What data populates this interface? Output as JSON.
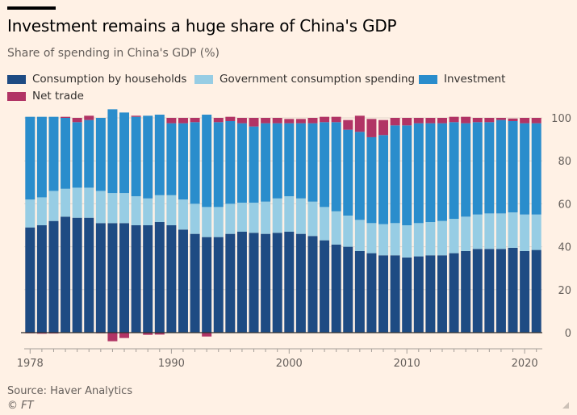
{
  "header": {
    "title": "Investment remains a huge share of China's GDP",
    "subtitle": "Share of spending in China's GDP (%)"
  },
  "footer": {
    "source": "Source: Haver Analytics",
    "copyright": "© FT"
  },
  "colors": {
    "background": "#fff1e5",
    "consumption": "#1e4b83",
    "government": "#97cde4",
    "investment": "#2a8dcc",
    "net_trade": "#b13465",
    "grid": "#e3d7cc",
    "baseline": "#33302e"
  },
  "chart_data": {
    "type": "bar",
    "stacked": true,
    "title": "Investment remains a huge share of China's GDP",
    "subtitle": "Share of spending in China's GDP (%)",
    "xlabel": "",
    "ylabel": "",
    "ylim": [
      -4,
      102
    ],
    "yticks": [
      0,
      20,
      40,
      60,
      80,
      100
    ],
    "xticks": [
      "1978",
      "1990",
      "2000",
      "2010",
      "2020"
    ],
    "grid": true,
    "legend_position": "top",
    "x": [
      1978,
      1979,
      1980,
      1981,
      1982,
      1983,
      1984,
      1985,
      1986,
      1987,
      1988,
      1989,
      1990,
      1991,
      1992,
      1993,
      1994,
      1995,
      1996,
      1997,
      1998,
      1999,
      2000,
      2001,
      2002,
      2003,
      2004,
      2005,
      2006,
      2007,
      2008,
      2009,
      2010,
      2011,
      2012,
      2013,
      2014,
      2015,
      2016,
      2017,
      2018,
      2019,
      2020,
      2021
    ],
    "series": [
      {
        "name": "Consumption by households",
        "color": "#1e4b83",
        "values": [
          49,
          50,
          52,
          54,
          53.5,
          53.5,
          51,
          51,
          51,
          50,
          50,
          51.5,
          50,
          48,
          46,
          44.5,
          44.5,
          46,
          47,
          46.5,
          46,
          46.5,
          47,
          46,
          45,
          43,
          41,
          40,
          38,
          37,
          36,
          36,
          35,
          35.5,
          36,
          36,
          37,
          38,
          39,
          39,
          39,
          39.5,
          38,
          38.5
        ]
      },
      {
        "name": "Government consumption spending",
        "color": "#97cde4",
        "values": [
          13,
          13,
          14,
          13,
          14,
          14,
          15,
          14,
          14,
          13.5,
          12.5,
          12.5,
          14,
          14,
          14,
          14,
          14,
          14,
          13.5,
          14,
          15,
          16,
          16.5,
          16.5,
          16,
          15.5,
          15.5,
          14.5,
          14.5,
          14,
          14.5,
          15,
          15,
          15.5,
          15.5,
          16,
          16,
          16,
          16,
          16.5,
          16.5,
          16.5,
          17,
          16.5
        ]
      },
      {
        "name": "Investment",
        "color": "#2a8dcc",
        "values": [
          38.5,
          37.5,
          34.5,
          33,
          30.5,
          31.5,
          34,
          39,
          37.5,
          37,
          38.5,
          37.5,
          33.5,
          35.5,
          38,
          43,
          39.5,
          38.5,
          37,
          35.5,
          36.5,
          35,
          34,
          35,
          36.5,
          39.5,
          41.5,
          40,
          41,
          40,
          41.5,
          45.5,
          46.5,
          46.5,
          46,
          45.5,
          45,
          43.5,
          43,
          42.5,
          43.5,
          42.5,
          42.5,
          42.5
        ]
      },
      {
        "name": "Net trade",
        "color": "#b13465",
        "values": [
          -0.3,
          -0.5,
          -0.4,
          0.5,
          2,
          2,
          -0.3,
          -4,
          -2.5,
          0.5,
          -1,
          -0.9,
          2.5,
          2.5,
          2,
          -1.8,
          2,
          2,
          2.5,
          4,
          2.5,
          2.5,
          2,
          2,
          2.5,
          2.5,
          2.5,
          4.5,
          7.5,
          8.5,
          7,
          3.5,
          3.5,
          2.5,
          2.5,
          2.5,
          2.5,
          3,
          2,
          2,
          1,
          1.2,
          2.5,
          2.5
        ]
      }
    ]
  }
}
